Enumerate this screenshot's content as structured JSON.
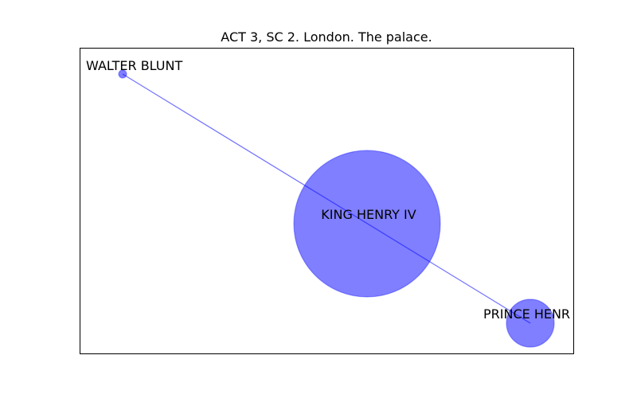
{
  "title": "ACT 3, SC 2. London. The palace.",
  "colors": {
    "node_fill": "#0000ff",
    "node_opacity": 0.5,
    "edge_stroke": "#0000ff",
    "edge_opacity": 0.55,
    "frame": "#000000"
  },
  "nodes": [
    {
      "id": "walter-blunt",
      "label": "WALTER BLUNT"
    },
    {
      "id": "king-henry-iv",
      "label": "KING HENRY IV"
    },
    {
      "id": "prince-henry",
      "label": "PRINCE HENR"
    }
  ],
  "edges": [
    {
      "source": "walter-blunt",
      "target": "prince-henry"
    }
  ]
}
